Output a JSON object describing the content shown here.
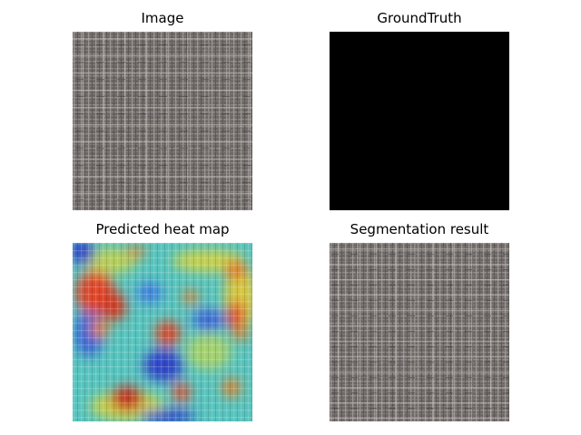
{
  "figure": {
    "panels": [
      {
        "title": "Image",
        "content": "fabric-texture"
      },
      {
        "title": "GroundTruth",
        "content": "empty-mask"
      },
      {
        "title": "Predicted heat map",
        "content": "jet-heatmap-over-fabric"
      },
      {
        "title": "Segmentation result",
        "content": "fabric-texture"
      }
    ]
  },
  "colors": {
    "fabric_base": "#5f5a59",
    "fabric_thread_light": "#bdb7b2",
    "fabric_thread_dark": "#3c3838",
    "ground_truth": "#000000",
    "heat_red": "#b62a1e",
    "heat_orange": "#e47a22",
    "heat_yellow": "#c9d046",
    "heat_cyan": "#4ec7c8",
    "heat_blue": "#2f45c7",
    "heat_navy": "#1c1a8c"
  }
}
